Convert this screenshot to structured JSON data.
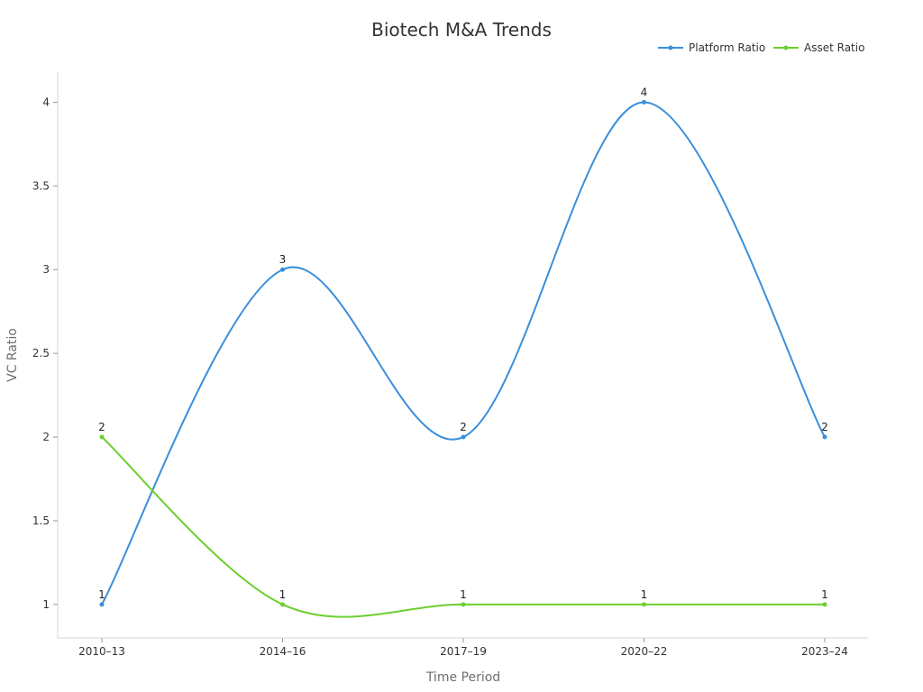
{
  "chart_data": {
    "type": "line",
    "title": "Biotech M&A Trends",
    "xlabel": "Time Period",
    "ylabel": "VC Ratio",
    "categories": [
      "2010–13",
      "2014–16",
      "2017–19",
      "2020–22",
      "2023–24"
    ],
    "ylim": [
      0.8,
      4.18
    ],
    "yticks": [
      1,
      1.5,
      2,
      2.5,
      3,
      3.5,
      4
    ],
    "ytick_labels": [
      "1",
      "1.5",
      "2",
      "2.5",
      "3",
      "3.5",
      "4"
    ],
    "grid": false,
    "legend_position": "top-right",
    "smooth": true,
    "series": [
      {
        "name": "Platform Ratio",
        "color": "#3a8fdb",
        "values": [
          1,
          3,
          2,
          4,
          2
        ],
        "labels": [
          "1",
          "3",
          "2",
          "4",
          "2"
        ]
      },
      {
        "name": "Asset Ratio",
        "color": "#6ccf2e",
        "values": [
          2,
          1,
          1,
          1,
          1
        ],
        "labels": [
          "2",
          "1",
          "1",
          "1",
          "1"
        ]
      }
    ]
  }
}
